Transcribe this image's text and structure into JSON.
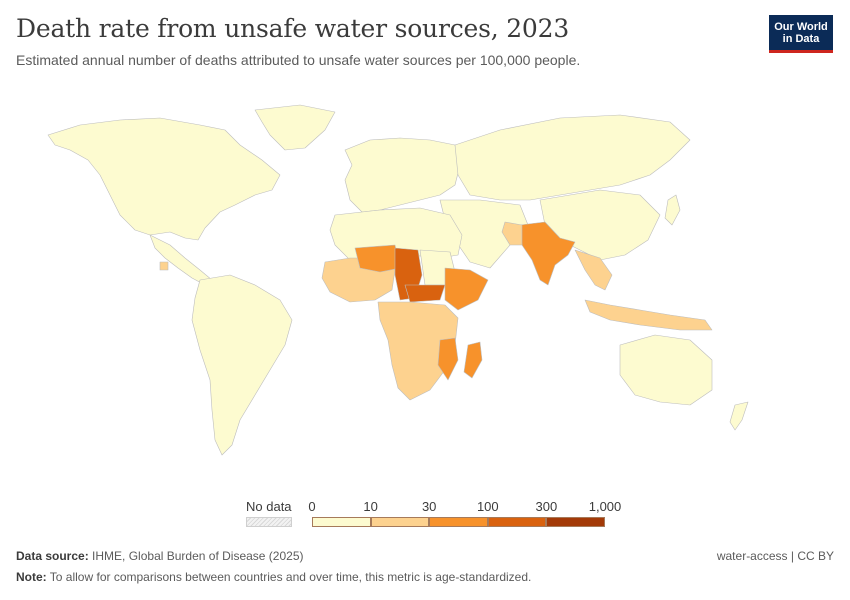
{
  "title": "Death rate from unsafe water sources, 2023",
  "subtitle": "Estimated annual number of deaths attributed to unsafe water sources per 100,000 people.",
  "logo": {
    "line1": "Our World",
    "line2": "in Data"
  },
  "legend": {
    "no_data_label": "No data",
    "ticks": [
      "0",
      "10",
      "30",
      "100",
      "300",
      "1,000"
    ],
    "bin_colors": [
      "#fdfbd0",
      "#fdd28f",
      "#f7922b",
      "#d9620f",
      "#a33a08"
    ]
  },
  "footer": {
    "source_label": "Data source:",
    "source_text": "IHME, Global Burden of Disease (2025)",
    "note_label": "Note:",
    "note_text": "To allow for comparisons between countries and over time, this metric is age-standardized.",
    "right_text": "water-access | CC BY"
  },
  "colors": {
    "land_low": "#fdfbd0",
    "border": "#bdbdbd"
  }
}
